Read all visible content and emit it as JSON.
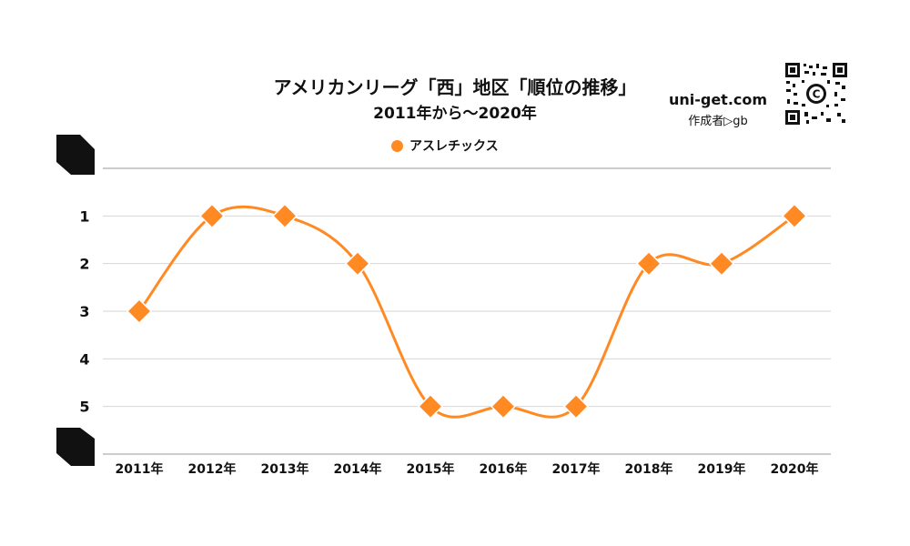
{
  "chart_data": {
    "type": "line",
    "title": "アメリカンリーグ「西」地区「順位の推移」",
    "subtitle": "2011年から〜2020年",
    "categories": [
      "2011年",
      "2012年",
      "2013年",
      "2014年",
      "2015年",
      "2016年",
      "2017年",
      "2018年",
      "2019年",
      "2020年"
    ],
    "series": [
      {
        "name": "アスレチックス",
        "values": [
          3,
          1,
          1,
          2,
          5,
          5,
          5,
          2,
          2,
          1
        ],
        "color": "#FF8A24"
      }
    ],
    "y_ticks": [
      "1",
      "2",
      "3",
      "4",
      "5"
    ],
    "ylim": [
      0,
      6
    ],
    "y_inverted": true,
    "grid": true,
    "legend": "top-center",
    "marker": "diamond"
  },
  "site": "uni-get.com",
  "author": "作成者▷gb",
  "qr_icon": "qr-code-icon"
}
